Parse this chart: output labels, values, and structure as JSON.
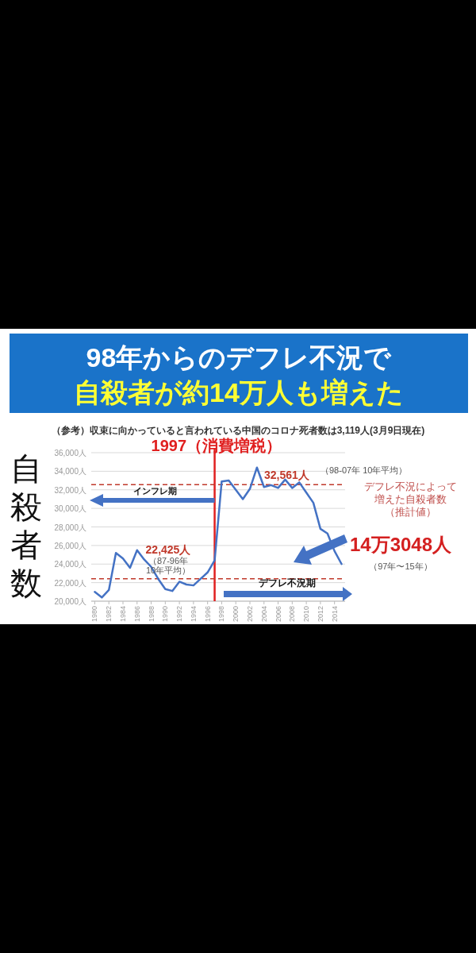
{
  "chart_data": {
    "type": "line",
    "title": "98年からのデフレ不況で自殺者が約14万人も増えた",
    "subtitle": "（参考）収束に向かっていると言われている中国のコロナ死者数は3,119人(3月9日現在)",
    "ylabel": "自殺者数",
    "x": [
      1980,
      1981,
      1982,
      1983,
      1984,
      1985,
      1986,
      1987,
      1988,
      1989,
      1990,
      1991,
      1992,
      1993,
      1994,
      1995,
      1996,
      1997,
      1998,
      1999,
      2000,
      2001,
      2002,
      2003,
      2004,
      2005,
      2006,
      2007,
      2008,
      2009,
      2010,
      2011,
      2012,
      2013,
      2014,
      2015
    ],
    "series": [
      {
        "color": "#4472c4",
        "values": [
          21000,
          20400,
          21200,
          25200,
          24600,
          23600,
          25500,
          24500,
          23700,
          22400,
          21300,
          21100,
          22100,
          21800,
          21700,
          22400,
          23100,
          24400,
          32900,
          33000,
          32000,
          31000,
          32100,
          34400,
          32300,
          32500,
          32200,
          33100,
          32200,
          32800,
          31700,
          30600,
          27800,
          27300,
          25400,
          24000
        ]
      }
    ],
    "xlim": [
      1979.5,
      2015.5
    ],
    "xticks": [
      1980,
      1982,
      1984,
      1986,
      1988,
      1990,
      1992,
      1994,
      1996,
      1998,
      2000,
      2002,
      2004,
      2006,
      2008,
      2010,
      2012,
      2014
    ],
    "ylim": [
      20000,
      36000
    ],
    "yticks": [
      {
        "value": 20000,
        "label": "20,000人"
      },
      {
        "value": 22000,
        "label": "22,000人"
      },
      {
        "value": 24000,
        "label": "24,000人"
      },
      {
        "value": 26000,
        "label": "26,000人"
      },
      {
        "value": 28000,
        "label": "28,000人"
      },
      {
        "value": 30000,
        "label": "30,000人"
      },
      {
        "value": 32000,
        "label": "32,000人"
      },
      {
        "value": 34000,
        "label": "34,000人"
      },
      {
        "value": 36000,
        "label": "36,000人"
      }
    ],
    "grid": "y",
    "ref_lines": [
      {
        "axis": "x",
        "value": 1997,
        "label": "1997（消費増税）",
        "color": "#e02020",
        "line_style": "solid"
      },
      {
        "axis": "y",
        "value": 22425,
        "label": "22,425人",
        "color": "#c0392b",
        "line_style": "dashed"
      },
      {
        "axis": "y",
        "value": 32561,
        "label": "32,561人",
        "color": "#c0392b",
        "line_style": "dashed"
      }
    ],
    "annotations": [
      "（87-96年\n10年平均）",
      "（98-07年 10年平均）",
      "インフレ期",
      "デフレ不況期",
      "デフレ不況によって",
      "増えた自殺者数",
      "（推計値）",
      "14万3048人",
      "（97年〜15年）"
    ]
  }
}
